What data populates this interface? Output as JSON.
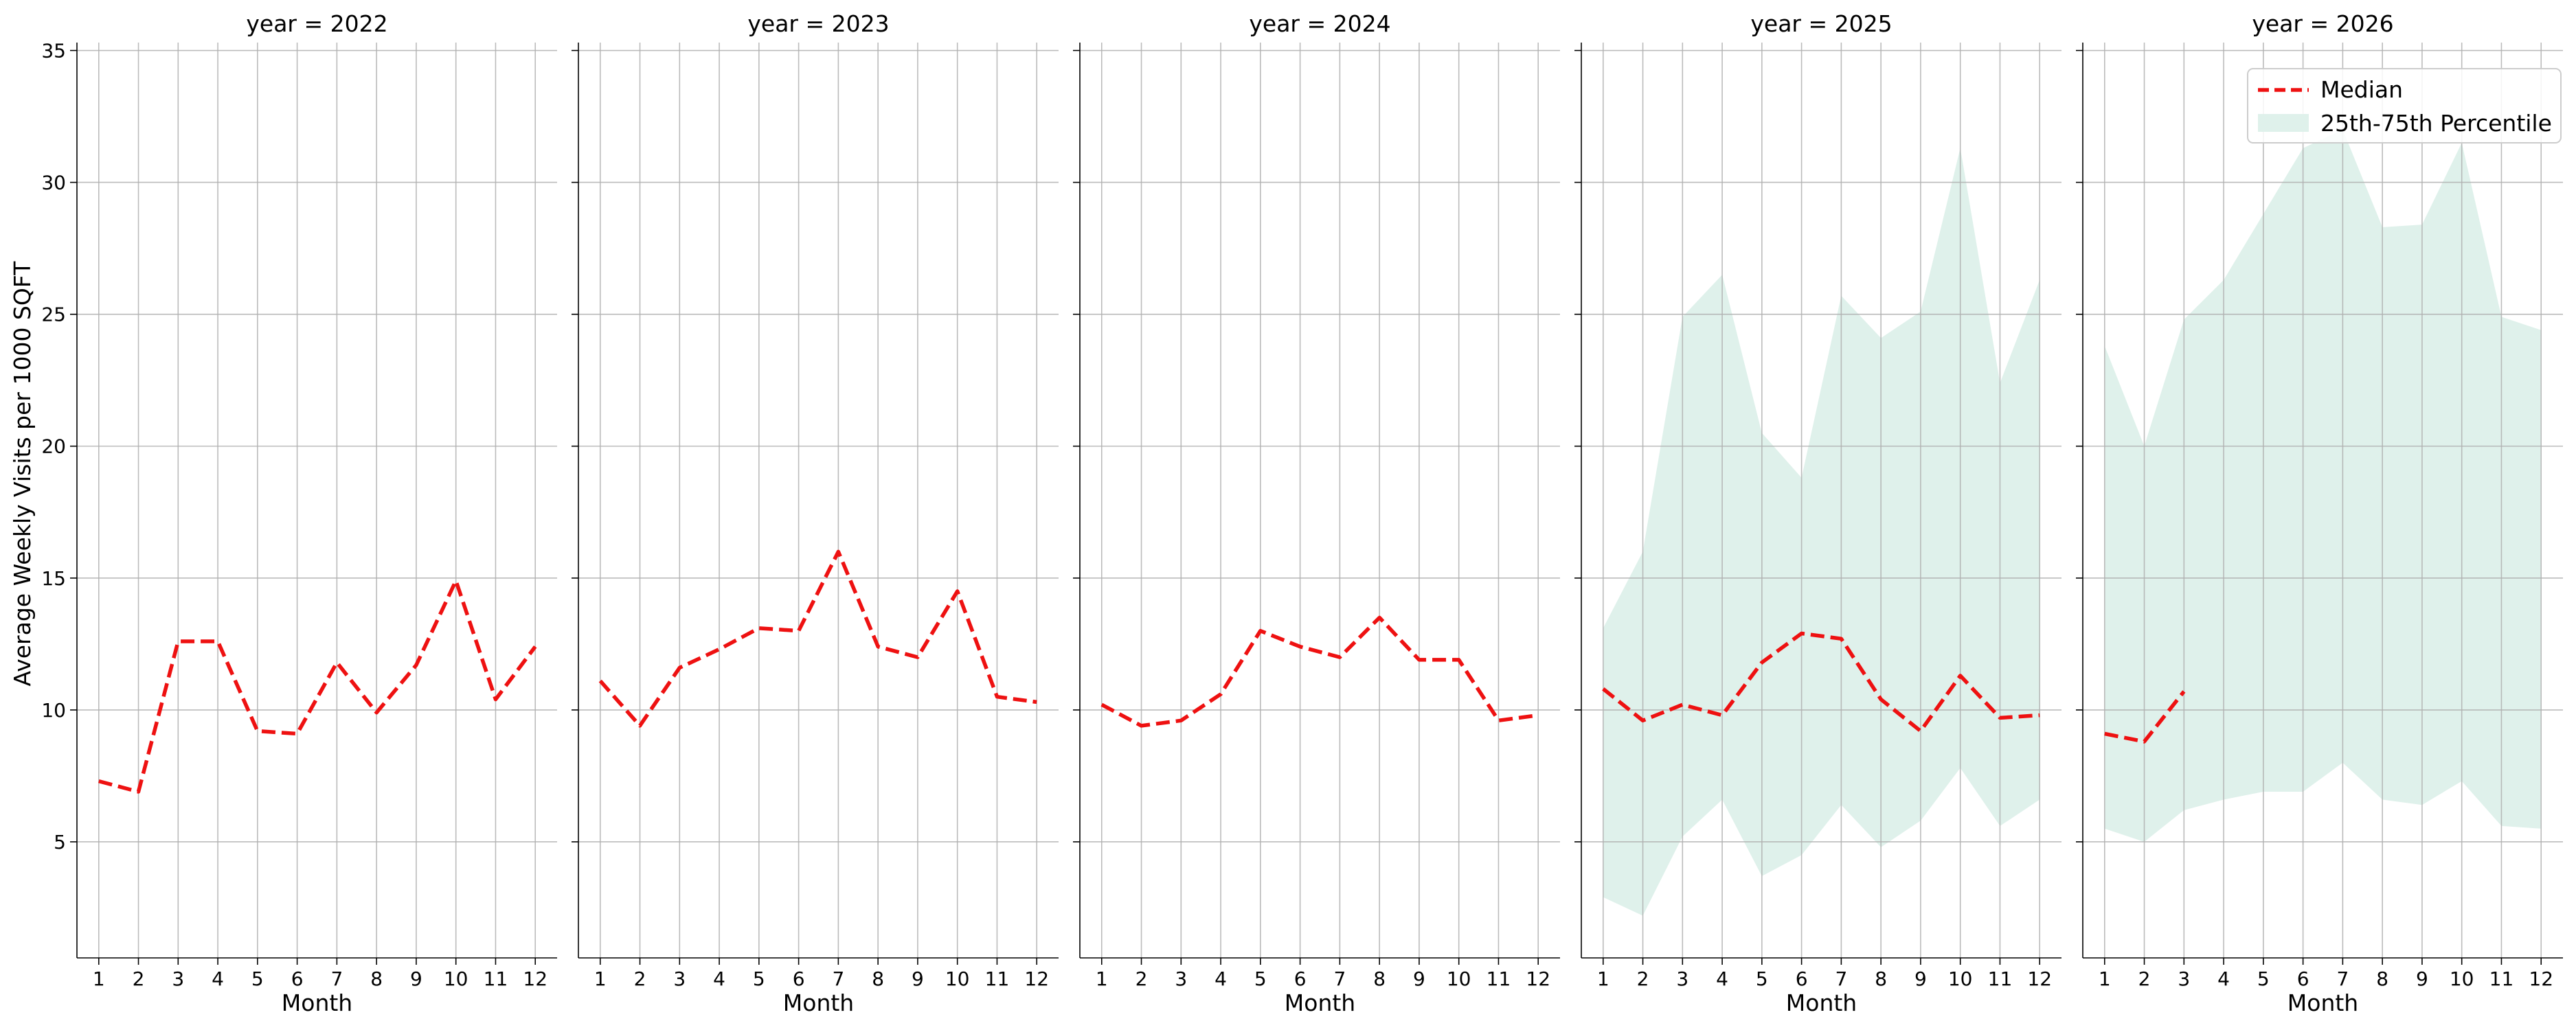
{
  "figure": {
    "ylabel": "Average Weekly Visits per 1000 SQFT",
    "xlabel": "Month",
    "legend": {
      "placement": "top-right",
      "entries": [
        {
          "label": "Median",
          "kind": "dashed-line",
          "color": "#ee1111"
        },
        {
          "label": "25th-75th Percentile",
          "kind": "band",
          "color": "#dff1eb"
        }
      ]
    },
    "colors": {
      "median": "#ee1111",
      "band": "#dff1eb",
      "grid": "#b0b0b0",
      "axis": "#000000"
    }
  },
  "chart_data": [
    {
      "type": "line",
      "title": "year = 2022",
      "xlabel": "Month",
      "ylabel": "Average Weekly Visits per 1000 SQFT",
      "x": [
        1,
        2,
        3,
        4,
        5,
        6,
        7,
        8,
        9,
        10,
        11,
        12
      ],
      "ylim": [
        0.6,
        35.3
      ],
      "yticks": [
        5,
        10,
        15,
        20,
        25,
        30,
        35
      ],
      "grid": true,
      "series": [
        {
          "name": "Median",
          "values": [
            7.3,
            6.9,
            12.6,
            12.6,
            9.2,
            9.1,
            11.8,
            9.9,
            11.7,
            14.9,
            10.4,
            12.4
          ]
        }
      ],
      "band": null
    },
    {
      "type": "line",
      "title": "year = 2023",
      "xlabel": "Month",
      "ylabel": "",
      "x": [
        1,
        2,
        3,
        4,
        5,
        6,
        7,
        8,
        9,
        10,
        11,
        12
      ],
      "ylim": [
        0.6,
        35.3
      ],
      "yticks": [
        5,
        10,
        15,
        20,
        25,
        30,
        35
      ],
      "grid": true,
      "series": [
        {
          "name": "Median",
          "values": [
            11.1,
            9.4,
            11.6,
            12.3,
            13.1,
            13.0,
            16.0,
            12.4,
            12.0,
            14.5,
            10.5,
            10.3
          ]
        }
      ],
      "band": null
    },
    {
      "type": "line",
      "title": "year = 2024",
      "xlabel": "Month",
      "ylabel": "",
      "x": [
        1,
        2,
        3,
        4,
        5,
        6,
        7,
        8,
        9,
        10,
        11,
        12
      ],
      "ylim": [
        0.6,
        35.3
      ],
      "yticks": [
        5,
        10,
        15,
        20,
        25,
        30,
        35
      ],
      "grid": true,
      "series": [
        {
          "name": "Median",
          "values": [
            10.2,
            9.4,
            9.6,
            10.6,
            13.0,
            12.4,
            12.0,
            13.5,
            11.9,
            11.9,
            9.6,
            9.8
          ]
        }
      ],
      "band": null
    },
    {
      "type": "line",
      "title": "year = 2025",
      "xlabel": "Month",
      "ylabel": "",
      "x": [
        1,
        2,
        3,
        4,
        5,
        6,
        7,
        8,
        9,
        10,
        11,
        12
      ],
      "ylim": [
        0.6,
        35.3
      ],
      "yticks": [
        5,
        10,
        15,
        20,
        25,
        30,
        35
      ],
      "grid": true,
      "series": [
        {
          "name": "Median",
          "values": [
            10.8,
            9.6,
            10.2,
            9.8,
            11.8,
            12.9,
            12.7,
            10.4,
            9.2,
            11.3,
            9.7,
            9.8
          ]
        }
      ],
      "band": {
        "lower": [
          2.9,
          2.2,
          5.2,
          6.6,
          3.7,
          4.5,
          6.4,
          4.8,
          5.8,
          7.8,
          5.6,
          6.6
        ],
        "upper": [
          13.1,
          16.0,
          24.9,
          26.5,
          20.5,
          18.8,
          25.7,
          24.1,
          25.1,
          31.3,
          22.4,
          26.3
        ]
      }
    },
    {
      "type": "line",
      "title": "year = 2026",
      "xlabel": "Month",
      "ylabel": "",
      "x": [
        1,
        2,
        3,
        4,
        5,
        6,
        7,
        8,
        9,
        10,
        11,
        12
      ],
      "ylim": [
        0.6,
        35.3
      ],
      "yticks": [
        5,
        10,
        15,
        20,
        25,
        30,
        35
      ],
      "grid": true,
      "series": [
        {
          "name": "Median",
          "x": [
            1,
            2,
            3
          ],
          "values": [
            9.1,
            8.8,
            10.7
          ]
        }
      ],
      "band": {
        "lower": [
          5.5,
          5.0,
          6.2,
          6.6,
          6.9,
          6.9,
          8.0,
          6.6,
          6.4,
          7.3,
          5.6,
          5.5
        ],
        "upper": [
          23.8,
          20.0,
          24.8,
          26.3,
          28.8,
          31.3,
          32.0,
          28.3,
          28.4,
          31.5,
          24.9,
          24.4
        ]
      }
    }
  ]
}
